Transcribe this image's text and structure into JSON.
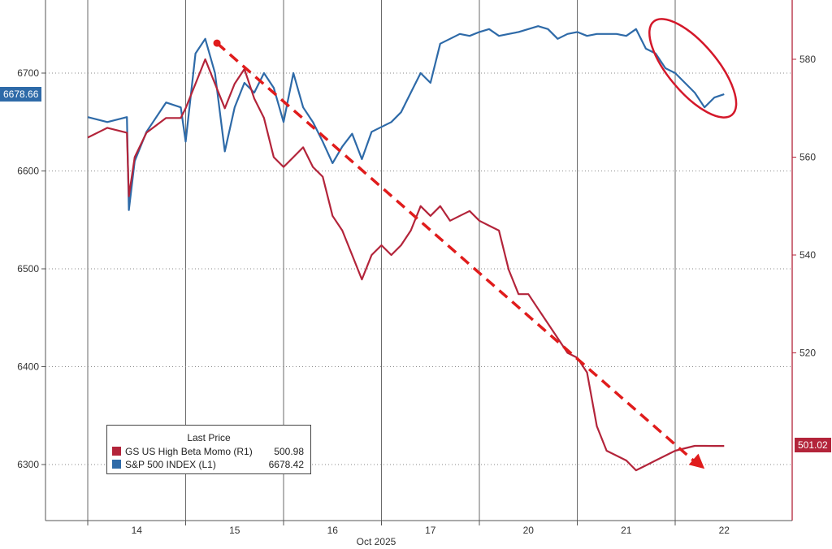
{
  "chart_data": {
    "type": "line",
    "title": "",
    "xlabel": "Oct 2025",
    "x_ticks": [
      "14",
      "15",
      "16",
      "17",
      "20",
      "21",
      "22"
    ],
    "y_left": {
      "ticks": [
        6300,
        6400,
        6500,
        6600,
        6700
      ],
      "range": [
        6250,
        6760
      ]
    },
    "y_right": {
      "ticks": [
        520,
        540,
        560,
        580
      ],
      "range": [
        494,
        590
      ]
    },
    "legend": {
      "title": "Last Price",
      "position": "bottom-left",
      "items": [
        {
          "name": "GS US High Beta Momo  (R1)",
          "value": "500.98",
          "color": "#b3243a"
        },
        {
          "name": "S&P 500 INDEX  (L1)",
          "value": "6678.42",
          "color": "#2e6aa8"
        }
      ]
    },
    "last_labels": {
      "left": "6678.66",
      "right": "501.02"
    },
    "series": [
      {
        "name": "S&P 500 INDEX",
        "axis": "left",
        "color": "#2e6aa8",
        "x": [
          0,
          0.2,
          0.4,
          0.42,
          0.48,
          0.6,
          0.8,
          0.95,
          1.0,
          1.1,
          1.2,
          1.3,
          1.4,
          1.5,
          1.6,
          1.7,
          1.8,
          1.9,
          2.0,
          2.1,
          2.2,
          2.3,
          2.4,
          2.5,
          2.6,
          2.7,
          2.8,
          2.9,
          3.0,
          3.1,
          3.2,
          3.3,
          3.4,
          3.5,
          3.6,
          3.7,
          3.8,
          3.9,
          4.0,
          4.1,
          4.2,
          4.3,
          4.4,
          4.5,
          4.6,
          4.7,
          4.8,
          4.9,
          5.0,
          5.1,
          5.2,
          5.3,
          5.4,
          5.5,
          5.6,
          5.7,
          5.8,
          5.9,
          6.0,
          6.1,
          6.2,
          6.3,
          6.4,
          6.5
        ],
        "values": [
          6655,
          6650,
          6655,
          6560,
          6610,
          6640,
          6670,
          6665,
          6630,
          6720,
          6735,
          6700,
          6620,
          6665,
          6690,
          6680,
          6700,
          6685,
          6650,
          6700,
          6665,
          6650,
          6630,
          6608,
          6625,
          6638,
          6612,
          6640,
          6645,
          6650,
          6660,
          6680,
          6700,
          6690,
          6730,
          6735,
          6740,
          6738,
          6742,
          6745,
          6738,
          6740,
          6742,
          6745,
          6748,
          6745,
          6735,
          6740,
          6742,
          6738,
          6740,
          6740,
          6740,
          6738,
          6745,
          6725,
          6720,
          6705,
          6700,
          6690,
          6680,
          6665,
          6675,
          6678.42
        ]
      },
      {
        "name": "GS US High Beta Momo",
        "axis": "right",
        "color": "#b3243a",
        "x": [
          0,
          0.2,
          0.4,
          0.42,
          0.48,
          0.6,
          0.8,
          0.95,
          1.0,
          1.1,
          1.2,
          1.3,
          1.4,
          1.5,
          1.6,
          1.7,
          1.8,
          1.9,
          2.0,
          2.1,
          2.2,
          2.3,
          2.4,
          2.5,
          2.6,
          2.7,
          2.8,
          2.9,
          3.0,
          3.1,
          3.2,
          3.3,
          3.4,
          3.5,
          3.6,
          3.7,
          3.8,
          3.9,
          4.0,
          4.1,
          4.2,
          4.3,
          4.4,
          4.5,
          4.6,
          4.7,
          4.8,
          4.9,
          5.0,
          5.1,
          5.2,
          5.3,
          5.4,
          5.5,
          5.6,
          5.7,
          5.8,
          5.9,
          6.0,
          6.1,
          6.2,
          6.3,
          6.4,
          6.5
        ],
        "values": [
          564,
          566,
          565,
          552,
          560,
          565,
          568,
          568,
          570,
          575,
          580,
          575,
          570,
          575,
          578,
          572,
          568,
          560,
          558,
          560,
          562,
          558,
          556,
          548,
          545,
          540,
          535,
          540,
          542,
          540,
          542,
          545,
          550,
          548,
          550,
          547,
          548,
          549,
          547,
          546,
          545,
          537,
          532,
          532,
          529,
          526,
          523,
          520,
          519,
          516,
          505,
          500,
          499,
          498,
          496,
          497,
          498,
          499,
          500,
          500.5,
          501,
          501,
          500.98,
          500.98
        ]
      }
    ],
    "annotations": [
      "dashed-downtrend-arrow",
      "ellipse-recent-sp500-decline"
    ]
  }
}
